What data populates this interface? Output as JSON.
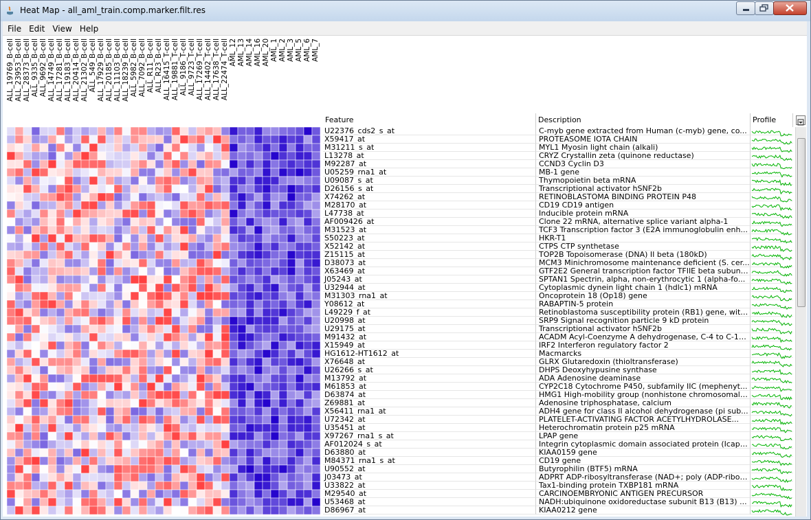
{
  "window": {
    "title": "Heat Map - all_aml_train.comp.marker.filt.res",
    "controls": {
      "minimize_icon": "minimize-icon",
      "maximize_icon": "maximize-icon",
      "close_icon": "close-icon"
    }
  },
  "menu": {
    "items": [
      "File",
      "Edit",
      "View",
      "Help"
    ]
  },
  "samples": [
    "ALL_19769_B-cell",
    "ALL_23953_B-cell",
    "ALL_28373_B-cell",
    "ALL_9335_B-cell",
    "ALL_9692_B-cell",
    "ALL_14749_B-cell",
    "ALL_17281_B-cell",
    "ALL_19183_B-cell",
    "ALL_20414_B-cell",
    "ALL_21302_B-cell",
    "ALL_549_B-cell",
    "ALL_17929_B-cell",
    "ALL_20185_B-cell",
    "ALL_11103_B-cell",
    "ALL_18239_B-cell",
    "ALL_5982_B-cell",
    "ALL_7092_B-cell",
    "ALL_R11_B-cell",
    "ALL_R23_B-cell",
    "ALL_16415_T-cell",
    "ALL_19881_T-cell",
    "ALL_9186_T-cell",
    "ALL_9723_T-cell",
    "ALL_17269_T-cell",
    "ALL_14402_T-cell",
    "ALL_17638_T-cell",
    "ALL_22474_T-cell",
    "AML_12",
    "AML_13",
    "AML_14",
    "AML_16",
    "AML_20",
    "AML_1",
    "AML_2",
    "AML_3",
    "AML_5",
    "AML_6",
    "AML_7"
  ],
  "columns": {
    "feature": "Feature",
    "description": "Description",
    "profile": "Profile"
  },
  "rows": [
    {
      "feature": "U22376_cds2_s_at",
      "description": "C-myb gene extracted from Human (c-myb) gene, co..."
    },
    {
      "feature": "X59417_at",
      "description": "PROTEASOME IOTA CHAIN"
    },
    {
      "feature": "M31211_s_at",
      "description": "MYL1 Myosin light chain (alkali)"
    },
    {
      "feature": "L13278_at",
      "description": "CRYZ Crystallin zeta (quinone reductase)"
    },
    {
      "feature": "M92287_at",
      "description": "CCND3 Cyclin D3"
    },
    {
      "feature": "U05259_rna1_at",
      "description": "MB-1 gene"
    },
    {
      "feature": "U09087_s_at",
      "description": "Thymopoietin beta mRNA"
    },
    {
      "feature": "D26156_s_at",
      "description": "Transcriptional activator hSNF2b"
    },
    {
      "feature": "X74262_at",
      "description": "RETINOBLASTOMA BINDING PROTEIN P48"
    },
    {
      "feature": "M28170_at",
      "description": "CD19 CD19 antigen"
    },
    {
      "feature": "L47738_at",
      "description": "Inducible protein mRNA"
    },
    {
      "feature": "AF009426_at",
      "description": "Clone 22 mRNA, alternative splice variant alpha-1"
    },
    {
      "feature": "M31523_at",
      "description": "TCF3 Transcription factor 3 (E2A immunoglobulin enh..."
    },
    {
      "feature": "S50223_at",
      "description": "HKR-T1"
    },
    {
      "feature": "X52142_at",
      "description": "CTPS CTP synthetase"
    },
    {
      "feature": "Z15115_at",
      "description": "TOP2B Topoisomerase (DNA) II beta (180kD)"
    },
    {
      "feature": "D38073_at",
      "description": "MCM3 Minichromosome maintenance deficient (S. cer..."
    },
    {
      "feature": "X63469_at",
      "description": "GTF2E2 General transcription factor TFIIE beta subuni..."
    },
    {
      "feature": "J05243_at",
      "description": "SPTAN1 Spectrin, alpha, non-erythrocytic 1 (alpha-fo..."
    },
    {
      "feature": "U32944_at",
      "description": "Cytoplasmic dynein light chain 1 (hdlc1) mRNA"
    },
    {
      "feature": "M31303_rna1_at",
      "description": "Oncoprotein 18 (Op18) gene"
    },
    {
      "feature": "Y08612_at",
      "description": "RABAPTIN-5 protein"
    },
    {
      "feature": "L49229_f_at",
      "description": "Retinoblastoma susceptibility protein (RB1) gene, with..."
    },
    {
      "feature": "U20998_at",
      "description": "SRP9 Signal recognition particle 9 kD protein"
    },
    {
      "feature": "U29175_at",
      "description": "Transcriptional activator hSNF2b"
    },
    {
      "feature": "M91432_at",
      "description": "ACADM Acyl-Coenzyme A dehydrogenase, C-4 to C-12..."
    },
    {
      "feature": "X15949_at",
      "description": "IRF2 Interferon regulatory factor 2"
    },
    {
      "feature": "HG1612-HT1612_at",
      "description": "Macmarcks"
    },
    {
      "feature": "X76648_at",
      "description": "GLRX Glutaredoxin (thioltransferase)"
    },
    {
      "feature": "U26266_s_at",
      "description": "DHPS Deoxyhypusine synthase"
    },
    {
      "feature": "M13792_at",
      "description": "ADA Adenosine deaminase"
    },
    {
      "feature": "M61853_at",
      "description": "CYP2C18 Cytochrome P450, subfamily IIC (mephenyt..."
    },
    {
      "feature": "D63874_at",
      "description": "HMG1 High-mobility group (nonhistone chromosomal) ..."
    },
    {
      "feature": "Z69881_at",
      "description": "Adenosine triphosphatase, calcium"
    },
    {
      "feature": "X56411_rna1_at",
      "description": "ADH4 gene for class II alcohol dehydrogenase (pi sub..."
    },
    {
      "feature": "U72342_at",
      "description": "PLATELET-ACTIVATING FACTOR ACETYLHYDROLASE..."
    },
    {
      "feature": "U35451_at",
      "description": "Heterochromatin protein p25 mRNA"
    },
    {
      "feature": "X97267_rna1_s_at",
      "description": "LPAP gene"
    },
    {
      "feature": "AF012024_s_at",
      "description": "Integrin cytoplasmic domain associated protein (Icap-..."
    },
    {
      "feature": "D63880_at",
      "description": "KIAA0159 gene"
    },
    {
      "feature": "M84371_rna1_s_at",
      "description": "CD19 gene"
    },
    {
      "feature": "U90552_at",
      "description": "Butyrophilin (BTF5) mRNA"
    },
    {
      "feature": "J03473_at",
      "description": "ADPRT ADP-ribosyltransferase (NAD+; poly (ADP-ribos..."
    },
    {
      "feature": "U33822_at",
      "description": "Tax1-binding protein TXBP181 mRNA"
    },
    {
      "feature": "M29540_at",
      "description": "CARCINOEMBRYONIC ANTIGEN PRECURSOR"
    },
    {
      "feature": "U53468_at",
      "description": "NADH:ubiquinone oxidoreductase subunit B13 (B13) ..."
    },
    {
      "feature": "D86967_at",
      "description": "KIAA0212 gene"
    }
  ],
  "colors": {
    "high": "#d40000",
    "low": "#2200cc",
    "mid": "#ffffff",
    "profile_line": "#00b300"
  }
}
